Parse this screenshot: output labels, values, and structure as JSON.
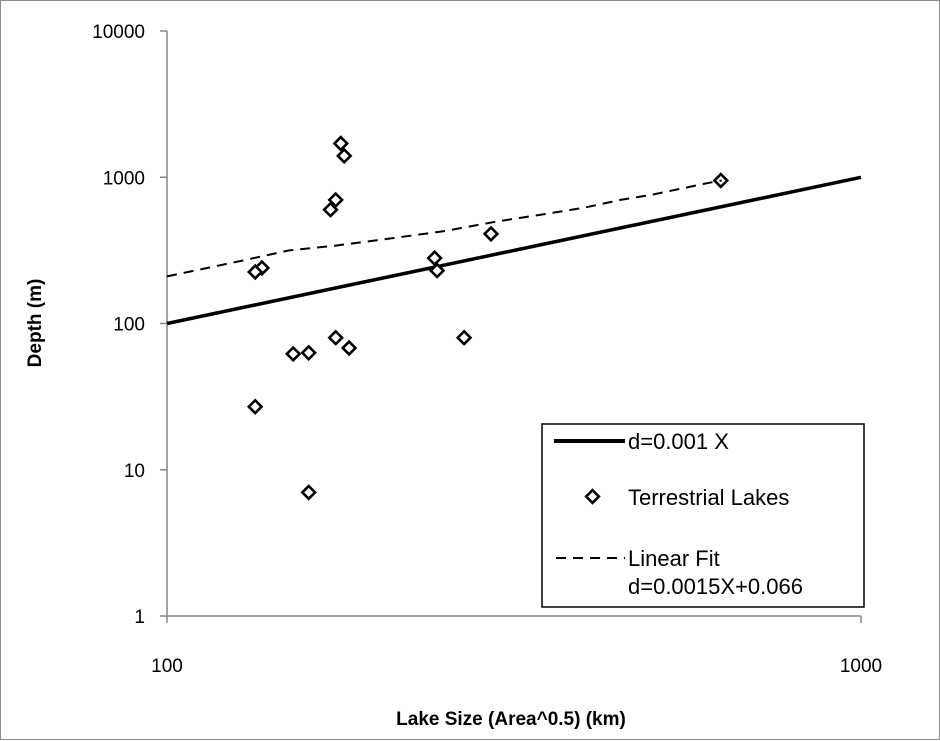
{
  "chart_data": {
    "type": "scatter",
    "xlabel": "Lake Size (Area^0.5)  (km)",
    "ylabel": "Depth (m)",
    "xscale": "log",
    "yscale": "log",
    "xlim": [
      100,
      1000
    ],
    "ylim": [
      1,
      10000
    ],
    "x_ticks": [
      "100",
      "1000"
    ],
    "y_ticks": [
      "1",
      "10",
      "100",
      "1000",
      "10000"
    ],
    "grid": false,
    "legend_position": "bottom-right",
    "series": [
      {
        "name": "d=0.001 X",
        "kind": "line",
        "style": "solid",
        "color": "#000000",
        "x": [
          100,
          1000
        ],
        "y": [
          100,
          1000
        ]
      },
      {
        "name": "Terrestrial Lakes",
        "kind": "scatter",
        "marker": "diamond",
        "color": "#000000",
        "x": [
          134,
          137,
          134,
          152,
          160,
          160,
          172,
          175,
          178,
          175,
          180,
          183,
          243,
          245,
          268,
          293,
          628
        ],
        "y": [
          27,
          240,
          225,
          62,
          63,
          7,
          600,
          700,
          1700,
          80,
          1400,
          68,
          280,
          230,
          80,
          410,
          950
        ]
      },
      {
        "name": "Linear Fit",
        "name_line2": "d=0.0015X+0.066",
        "kind": "line",
        "style": "dashed",
        "color": "#000000",
        "x": [
          100,
          125,
          150,
          175,
          200,
          250,
          300,
          350,
          400,
          450,
          500,
          550,
          600,
          630
        ],
        "y": [
          210,
          262,
          316,
          341,
          370,
          427,
          500,
          560,
          620,
          700,
          760,
          835,
          910,
          950
        ]
      }
    ]
  }
}
